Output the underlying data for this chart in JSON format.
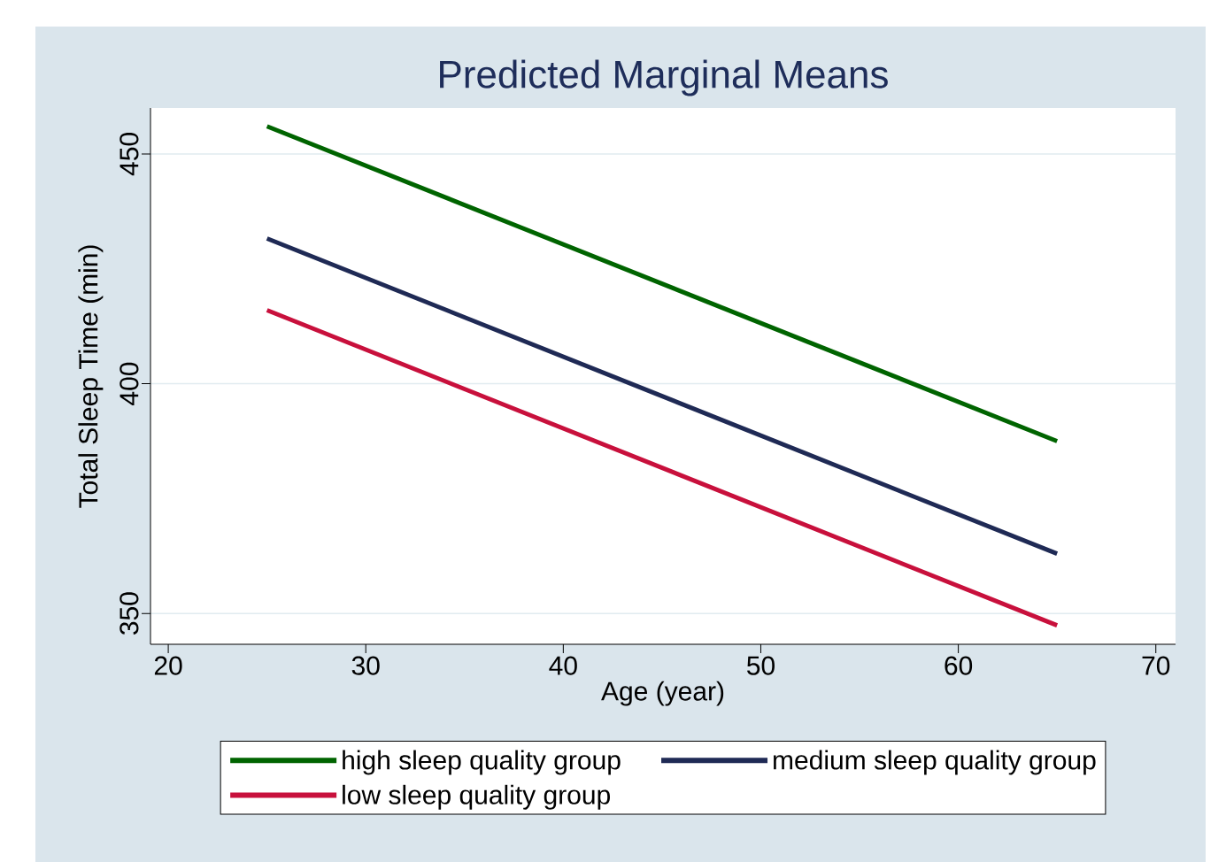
{
  "chart_data": {
    "type": "line",
    "title": "Predicted Marginal Means",
    "xlabel": "Age (year)",
    "ylabel": "Total Sleep Time (min)",
    "x": [
      25,
      65
    ],
    "series": [
      {
        "name": "high sleep quality group",
        "color": "#006400",
        "values": [
          456.0,
          387.5
        ]
      },
      {
        "name": "medium sleep quality group",
        "color": "#1f2a55",
        "values": [
          431.6,
          363.0
        ]
      },
      {
        "name": "low sleep quality group",
        "color": "#c8103c",
        "values": [
          416.0,
          347.4
        ]
      }
    ],
    "xlim": [
      19.1,
      71.0
    ],
    "ylim": [
      343.3,
      460
    ],
    "xticks": [
      20,
      30,
      40,
      50,
      60,
      70
    ],
    "yticks": [
      350,
      400,
      450
    ],
    "grid": "y",
    "legend": "bottom",
    "marker": "none",
    "line_style": "solid"
  }
}
